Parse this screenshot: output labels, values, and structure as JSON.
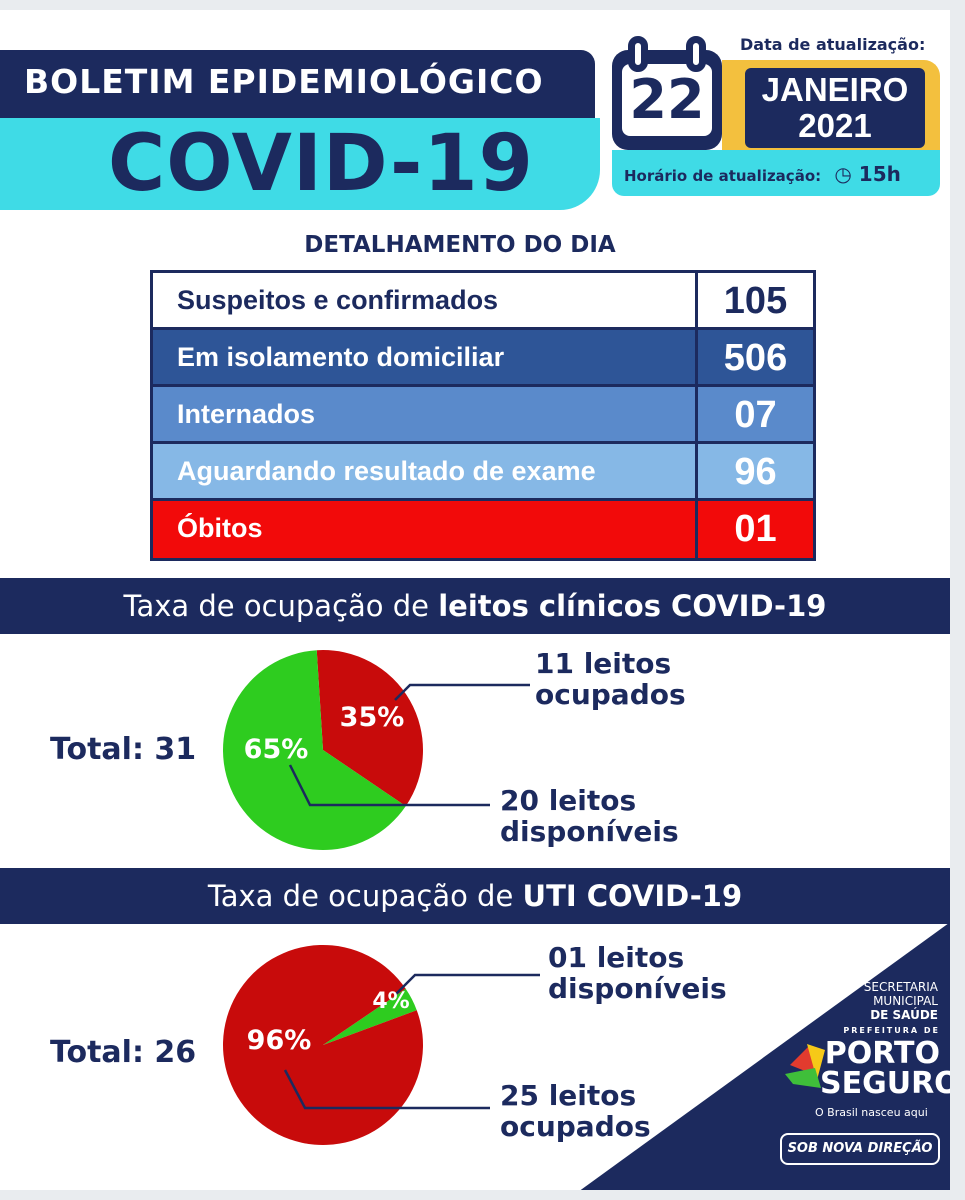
{
  "header": {
    "title": "BOLETIM EPIDEMIOLÓGICO",
    "subtitle": "COVID-19"
  },
  "update": {
    "date_label": "Data de atualização:",
    "day": "22",
    "month": "JANEIRO",
    "year": "2021",
    "time_label": "Horário de atualização:",
    "time": "15h",
    "clock_icon": "clock-icon"
  },
  "details": {
    "title": "DETALHAMENTO DO DIA",
    "rows": [
      {
        "label": "Suspeitos e confirmados",
        "value": "105",
        "bg": "#ffffff",
        "color": "#1c2a5e"
      },
      {
        "label": "Em isolamento domiciliar",
        "value": "506",
        "bg": "#2e5597",
        "color": "#ffffff"
      },
      {
        "label": "Internados",
        "value": "07",
        "bg": "#5a8acb",
        "color": "#ffffff"
      },
      {
        "label": "Aguardando resultado de exame",
        "value": "96",
        "bg": "#86b8e6",
        "color": "#ffffff"
      },
      {
        "label": "Óbitos",
        "value": "01",
        "bg": "#f20a0a",
        "color": "#ffffff"
      }
    ]
  },
  "chart_data": [
    {
      "type": "pie",
      "title_prefix": "Taxa de ocupação de ",
      "title_bold": "leitos clínicos COVID-19",
      "total_label": "Total: 31",
      "slices": [
        {
          "name": "ocupados",
          "value": 11,
          "percent": "35%",
          "color": "#c80b0b",
          "label_1": "11 leitos",
          "label_2": "ocupados"
        },
        {
          "name": "disponíveis",
          "value": 20,
          "percent": "65%",
          "color": "#2ecc1f",
          "label_1": "20 leitos",
          "label_2": "disponíveis"
        }
      ]
    },
    {
      "type": "pie",
      "title_prefix": "Taxa de ocupação de ",
      "title_bold": "UTI COVID-19",
      "total_label": "Total: 26",
      "slices": [
        {
          "name": "disponíveis",
          "value": 1,
          "percent": "4%",
          "color": "#2ecc1f",
          "label_1": "01 leitos",
          "label_2": "disponíveis"
        },
        {
          "name": "ocupados",
          "value": 25,
          "percent": "96%",
          "color": "#c80b0b",
          "label_1": "25 leitos",
          "label_2": "ocupados"
        }
      ]
    }
  ],
  "logo": {
    "line1": "SECRETARIA",
    "line2": "MUNICIPAL",
    "line3": "DE SAÚDE",
    "pref": "PREFEITURA DE",
    "porto": "PORTO",
    "seguro": "SEGURO",
    "tagline": "O Brasil nasceu aqui",
    "slogan": "SOB NOVA DIREÇÃO"
  }
}
